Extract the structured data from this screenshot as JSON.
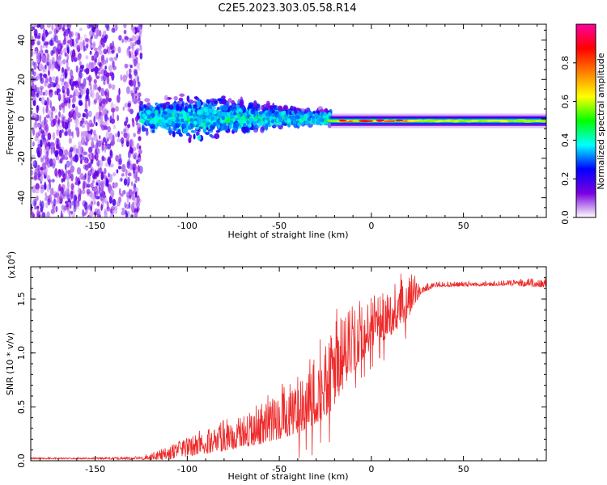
{
  "title": "C2E5.2023.303.05.58.R14",
  "colors": {
    "snr_line": "#ee2a2a"
  },
  "chart_data": [
    {
      "id": "spectrogram",
      "type": "heatmap",
      "xlabel": "Height of straight line (km)",
      "ylabel": "Frequency (Hz)",
      "xlim": [
        -185,
        95
      ],
      "ylim": [
        -50,
        48
      ],
      "x_ticks": [
        -150,
        -100,
        -50,
        0,
        50
      ],
      "y_ticks": [
        -40,
        -20,
        0,
        20,
        40
      ],
      "colorbar": {
        "label": "Normalized spectral amplitude",
        "range": [
          0,
          1
        ],
        "ticks": [
          0.0,
          0.2,
          0.4,
          0.6,
          0.8
        ],
        "tick_labels": [
          "0.0",
          "0.2",
          "0.4",
          "0.6",
          "0.8"
        ],
        "stops": [
          "#ffffff",
          "#7a00e0",
          "#0000ff",
          "#00ffff",
          "#00ff00",
          "#ffff00",
          "#ff8000",
          "#ff0000",
          "#ff00a0"
        ]
      },
      "regions": [
        {
          "name": "noise-broadband",
          "x_range": [
            -185,
            -125
          ],
          "freq_range": [
            -50,
            48
          ],
          "amplitude": 0.12
        },
        {
          "name": "scattered-cluster",
          "x_range": [
            -125,
            -22
          ],
          "freq_range": [
            -12,
            12
          ],
          "amplitude": 0.3
        },
        {
          "name": "stable-carrier",
          "x_range": [
            -22,
            95
          ],
          "freq_range": [
            -3,
            1
          ],
          "amplitude": 0.55
        }
      ]
    },
    {
      "id": "snr",
      "type": "line",
      "xlabel": "Height of straight line (km)",
      "ylabel": "SNR (10 * v/v)",
      "multiplier_label": "(x10",
      "multiplier_exp": "4",
      "multiplier_close": ")",
      "xlim": [
        -185,
        95
      ],
      "ylim": [
        0,
        1.8
      ],
      "x_ticks": [
        -150,
        -100,
        -50,
        0,
        50
      ],
      "y_ticks": [
        0.0,
        0.5,
        1.0,
        1.5
      ],
      "y_tick_labels": [
        "0.0",
        "0.5",
        "1.0",
        "1.5"
      ],
      "series": [
        {
          "name": "SNR",
          "envelope": {
            "x": [
              -185,
              -150,
              -125,
              -110,
              -100,
              -80,
              -60,
              -45,
              -30,
              -22,
              -12,
              0,
              10,
              20,
              27,
              35,
              50,
              70,
              95
            ],
            "base": [
              0.02,
              0.02,
              0.02,
              0.05,
              0.1,
              0.18,
              0.28,
              0.4,
              0.55,
              0.7,
              0.95,
              1.2,
              1.3,
              1.45,
              1.58,
              1.63,
              1.63,
              1.64,
              1.64
            ],
            "spread": [
              0.01,
              0.01,
              0.02,
              0.08,
              0.12,
              0.18,
              0.25,
              0.35,
              0.45,
              0.5,
              0.35,
              0.3,
              0.3,
              0.25,
              0.05,
              0.03,
              0.03,
              0.03,
              0.06
            ]
          }
        }
      ]
    }
  ]
}
